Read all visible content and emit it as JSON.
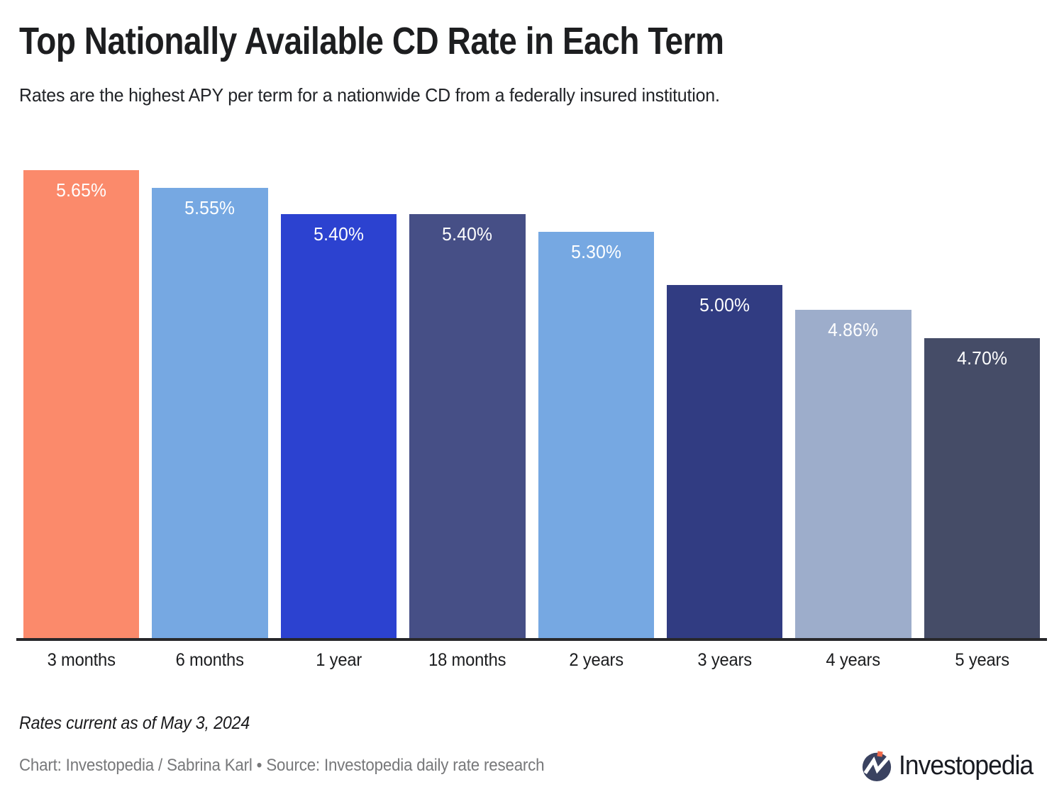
{
  "header": {
    "title": "Top Nationally Available CD Rate in Each Term",
    "subtitle": "Rates are the highest APY per term for a nationwide CD from a federally insured institution."
  },
  "chart_data": {
    "type": "bar",
    "categories": [
      "3 months",
      "6 months",
      "1 year",
      "18 months",
      "2 years",
      "3 years",
      "4 years",
      "5 years"
    ],
    "values": [
      5.65,
      5.55,
      5.4,
      5.4,
      5.3,
      5.0,
      4.86,
      4.7
    ],
    "value_labels": [
      "5.65%",
      "5.55%",
      "5.40%",
      "5.40%",
      "5.30%",
      "5.00%",
      "4.86%",
      "4.70%"
    ],
    "bar_colors": [
      "#FB8A6B",
      "#76A8E2",
      "#2C42D0",
      "#464F86",
      "#76A8E2",
      "#313C82",
      "#9DADCB",
      "#454C67"
    ],
    "value_label_color": "#ffffff",
    "title": "Top Nationally Available CD Rate in Each Term",
    "xlabel": "",
    "ylabel": "",
    "value_unit": "% APY",
    "ylim": [
      3.0,
      5.65
    ],
    "y_axis_hidden": true,
    "gridlines": false,
    "legend": "none",
    "axis_line_color": "#28282b"
  },
  "footer": {
    "note": "Rates current as of May 3, 2024",
    "credit": "Chart: Investopedia / Sabrina Karl • Source: Investopedia daily rate research",
    "logo_text": "Investopedia"
  },
  "colors": {
    "background": "#ffffff",
    "title_text": "#1d1e20",
    "credit_text": "#77787a",
    "logo_circle": "#3A4260",
    "logo_dot": "#F0694A"
  }
}
